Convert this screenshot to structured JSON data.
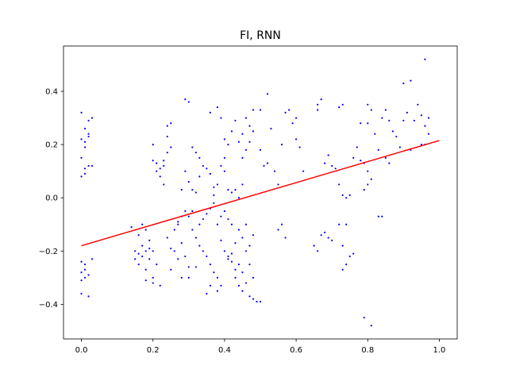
{
  "chart_data": {
    "type": "scatter",
    "title": "FI, RNN",
    "xlabel": "",
    "ylabel": "",
    "xlim": [
      -0.05,
      1.05
    ],
    "ylim": [
      -0.53,
      0.57
    ],
    "xticks": [
      0.0,
      0.2,
      0.4,
      0.6,
      0.8,
      1.0
    ],
    "xtick_labels": [
      "0.0",
      "0.2",
      "0.4",
      "0.6",
      "0.8",
      "1.0"
    ],
    "yticks": [
      -0.4,
      -0.2,
      0.0,
      0.2,
      0.4
    ],
    "ytick_labels": [
      "−0.4",
      "−0.2",
      "0.0",
      "0.2",
      "0.4"
    ],
    "grid": false,
    "legend": "none",
    "colors": {
      "points": "#0000ff",
      "fit_line": "#ff0000",
      "axes": "#000000"
    },
    "series": [
      {
        "kind": "scatter",
        "points": [
          [
            0.0,
            0.32
          ],
          [
            0.01,
            0.26
          ],
          [
            0.02,
            0.29
          ],
          [
            0.0,
            0.22
          ],
          [
            0.01,
            0.19
          ],
          [
            0.02,
            0.24
          ],
          [
            0.0,
            0.15
          ],
          [
            0.01,
            0.11
          ],
          [
            0.02,
            0.12
          ],
          [
            0.0,
            0.08
          ],
          [
            0.01,
            0.09
          ],
          [
            0.02,
            0.23
          ],
          [
            0.01,
            0.21
          ],
          [
            0.03,
            0.3
          ],
          [
            0.03,
            0.12
          ],
          [
            0.0,
            -0.24
          ],
          [
            0.01,
            -0.25
          ],
          [
            0.0,
            -0.28
          ],
          [
            0.01,
            -0.3
          ],
          [
            0.0,
            -0.31
          ],
          [
            0.02,
            -0.29
          ],
          [
            0.01,
            -0.27
          ],
          [
            0.0,
            -0.36
          ],
          [
            0.02,
            -0.37
          ],
          [
            0.03,
            -0.23
          ],
          [
            0.14,
            -0.11
          ],
          [
            0.15,
            -0.2
          ],
          [
            0.16,
            -0.25
          ],
          [
            0.16,
            -0.14
          ],
          [
            0.17,
            -0.18
          ],
          [
            0.17,
            -0.22
          ],
          [
            0.18,
            -0.27
          ],
          [
            0.18,
            -0.12
          ],
          [
            0.19,
            -0.16
          ],
          [
            0.19,
            -0.23
          ],
          [
            0.2,
            -0.3
          ],
          [
            0.2,
            -0.2
          ],
          [
            0.21,
            -0.25
          ],
          [
            0.17,
            -0.1
          ],
          [
            0.18,
            -0.2
          ],
          [
            0.19,
            -0.19
          ],
          [
            0.16,
            -0.21
          ],
          [
            0.15,
            -0.23
          ],
          [
            0.18,
            -0.31
          ],
          [
            0.2,
            -0.32
          ],
          [
            0.22,
            -0.33
          ],
          [
            0.2,
            0.14
          ],
          [
            0.21,
            0.13
          ],
          [
            0.22,
            0.11
          ],
          [
            0.23,
            0.14
          ],
          [
            0.2,
            0.2
          ],
          [
            0.21,
            0.1
          ],
          [
            0.22,
            0.08
          ],
          [
            0.23,
            0.05
          ],
          [
            0.24,
            0.27
          ],
          [
            0.25,
            0.28
          ],
          [
            0.24,
            0.23
          ],
          [
            0.25,
            0.19
          ],
          [
            0.24,
            0.17
          ],
          [
            0.23,
            0.12
          ],
          [
            0.24,
            -0.15
          ],
          [
            0.25,
            -0.19
          ],
          [
            0.26,
            -0.2
          ],
          [
            0.27,
            -0.23
          ],
          [
            0.28,
            -0.17
          ],
          [
            0.29,
            -0.22
          ],
          [
            0.3,
            -0.26
          ],
          [
            0.26,
            -0.12
          ],
          [
            0.27,
            -0.1
          ],
          [
            0.28,
            -0.07
          ],
          [
            0.29,
            -0.05
          ],
          [
            0.3,
            -0.07
          ],
          [
            0.25,
            -0.27
          ],
          [
            0.28,
            -0.3
          ],
          [
            0.3,
            -0.3
          ],
          [
            0.27,
            -0.09
          ],
          [
            0.28,
            0.03
          ],
          [
            0.29,
            0.1
          ],
          [
            0.3,
            0.06
          ],
          [
            0.31,
            0.03
          ],
          [
            0.32,
            0.02
          ],
          [
            0.33,
            0.08
          ],
          [
            0.34,
            0.12
          ],
          [
            0.29,
            0.37
          ],
          [
            0.3,
            0.36
          ],
          [
            0.31,
            0.19
          ],
          [
            0.32,
            0.17
          ],
          [
            0.33,
            0.15
          ],
          [
            0.35,
            0.11
          ],
          [
            0.36,
            0.09
          ],
          [
            0.37,
            0.04
          ],
          [
            0.31,
            -0.12
          ],
          [
            0.32,
            -0.15
          ],
          [
            0.33,
            -0.18
          ],
          [
            0.34,
            -0.2
          ],
          [
            0.35,
            -0.22
          ],
          [
            0.36,
            -0.25
          ],
          [
            0.37,
            -0.28
          ],
          [
            0.38,
            -0.3
          ],
          [
            0.39,
            -0.33
          ],
          [
            0.33,
            -0.1
          ],
          [
            0.34,
            -0.08
          ],
          [
            0.35,
            -0.06
          ],
          [
            0.36,
            -0.04
          ],
          [
            0.37,
            -0.02
          ],
          [
            0.31,
            -0.05
          ],
          [
            0.32,
            -0.26
          ],
          [
            0.35,
            -0.36
          ],
          [
            0.36,
            -0.33
          ],
          [
            0.38,
            -0.35
          ],
          [
            0.36,
            0.32
          ],
          [
            0.38,
            0.34
          ],
          [
            0.39,
            0.3
          ],
          [
            0.4,
            0.22
          ],
          [
            0.41,
            0.2
          ],
          [
            0.42,
            0.25
          ],
          [
            0.43,
            0.29
          ],
          [
            0.4,
            0.15
          ],
          [
            0.39,
            0.12
          ],
          [
            0.38,
            0.05
          ],
          [
            0.37,
            0.01
          ],
          [
            0.4,
            0.1
          ],
          [
            0.41,
            0.03
          ],
          [
            0.42,
            0.02
          ],
          [
            0.43,
            0.03
          ],
          [
            0.44,
            0.0
          ],
          [
            0.45,
            0.05
          ],
          [
            0.44,
            0.21
          ],
          [
            0.45,
            0.24
          ],
          [
            0.46,
            0.3
          ],
          [
            0.47,
            0.27
          ],
          [
            0.48,
            0.25
          ],
          [
            0.47,
            0.21
          ],
          [
            0.46,
            0.18
          ],
          [
            0.45,
            0.15
          ],
          [
            0.48,
            0.33
          ],
          [
            0.5,
            0.33
          ],
          [
            0.39,
            -0.16
          ],
          [
            0.4,
            -0.2
          ],
          [
            0.41,
            -0.23
          ],
          [
            0.42,
            -0.21
          ],
          [
            0.43,
            -0.17
          ],
          [
            0.44,
            -0.12
          ],
          [
            0.45,
            -0.15
          ],
          [
            0.46,
            -0.2
          ],
          [
            0.47,
            -0.25
          ],
          [
            0.48,
            -0.3
          ],
          [
            0.45,
            -0.28
          ],
          [
            0.44,
            -0.25
          ],
          [
            0.43,
            -0.27
          ],
          [
            0.42,
            -0.1
          ],
          [
            0.41,
            -0.08
          ],
          [
            0.4,
            -0.05
          ],
          [
            0.39,
            -0.07
          ],
          [
            0.38,
            -0.1
          ],
          [
            0.41,
            -0.22
          ],
          [
            0.42,
            -0.24
          ],
          [
            0.43,
            -0.3
          ],
          [
            0.44,
            -0.33
          ],
          [
            0.45,
            -0.35
          ],
          [
            0.46,
            -0.32
          ],
          [
            0.47,
            -0.37
          ],
          [
            0.48,
            -0.38
          ],
          [
            0.49,
            -0.39
          ],
          [
            0.5,
            -0.39
          ],
          [
            0.46,
            -0.1
          ],
          [
            0.47,
            -0.18
          ],
          [
            0.48,
            -0.14
          ],
          [
            0.5,
            0.18
          ],
          [
            0.51,
            0.12
          ],
          [
            0.52,
            0.39
          ],
          [
            0.53,
            0.26
          ],
          [
            0.54,
            0.1
          ],
          [
            0.55,
            0.05
          ],
          [
            0.56,
            0.2
          ],
          [
            0.57,
            0.32
          ],
          [
            0.58,
            0.33
          ],
          [
            0.59,
            0.28
          ],
          [
            0.6,
            0.3
          ],
          [
            0.55,
            -0.12
          ],
          [
            0.56,
            -0.1
          ],
          [
            0.57,
            -0.15
          ],
          [
            0.6,
            0.22
          ],
          [
            0.61,
            0.19
          ],
          [
            0.62,
            0.1
          ],
          [
            0.52,
            0.13
          ],
          [
            0.65,
            -0.18
          ],
          [
            0.66,
            -0.2
          ],
          [
            0.67,
            -0.14
          ],
          [
            0.68,
            -0.13
          ],
          [
            0.69,
            -0.15
          ],
          [
            0.7,
            -0.16
          ],
          [
            0.72,
            -0.1
          ],
          [
            0.73,
            -0.27
          ],
          [
            0.74,
            -0.25
          ],
          [
            0.75,
            -0.22
          ],
          [
            0.76,
            -0.21
          ],
          [
            0.73,
            -0.18
          ],
          [
            0.74,
            -0.1
          ],
          [
            0.66,
            0.35
          ],
          [
            0.67,
            0.37
          ],
          [
            0.66,
            0.33
          ],
          [
            0.68,
            0.13
          ],
          [
            0.69,
            0.16
          ],
          [
            0.7,
            0.12
          ],
          [
            0.71,
            0.11
          ],
          [
            0.72,
            0.05
          ],
          [
            0.73,
            0.01
          ],
          [
            0.74,
            0.0
          ],
          [
            0.75,
            0.01
          ],
          [
            0.76,
            0.15
          ],
          [
            0.77,
            0.19
          ],
          [
            0.78,
            0.28
          ],
          [
            0.72,
            0.34
          ],
          [
            0.73,
            0.35
          ],
          [
            0.78,
            0.14
          ],
          [
            0.79,
            0.13
          ],
          [
            0.8,
            0.1
          ],
          [
            0.81,
            0.07
          ],
          [
            0.8,
            0.05
          ],
          [
            0.79,
            0.03
          ],
          [
            0.8,
            0.35
          ],
          [
            0.81,
            0.33
          ],
          [
            0.8,
            0.28
          ],
          [
            0.82,
            0.24
          ],
          [
            0.83,
            0.18
          ],
          [
            0.84,
            0.3
          ],
          [
            0.85,
            0.33
          ],
          [
            0.86,
            0.29
          ],
          [
            0.87,
            0.25
          ],
          [
            0.88,
            0.23
          ],
          [
            0.89,
            0.19
          ],
          [
            0.9,
            0.29
          ],
          [
            0.91,
            0.32
          ],
          [
            0.9,
            0.43
          ],
          [
            0.92,
            0.44
          ],
          [
            0.93,
            0.29
          ],
          [
            0.94,
            0.35
          ],
          [
            0.95,
            0.31
          ],
          [
            0.96,
            0.52
          ],
          [
            0.97,
            0.3
          ],
          [
            0.96,
            0.27
          ],
          [
            0.97,
            0.24
          ],
          [
            0.96,
            0.2
          ],
          [
            0.95,
            0.2
          ],
          [
            0.92,
            0.18
          ],
          [
            0.85,
            0.15
          ],
          [
            0.86,
            0.13
          ],
          [
            0.83,
            -0.07
          ],
          [
            0.84,
            -0.07
          ],
          [
            0.79,
            -0.45
          ],
          [
            0.81,
            -0.48
          ]
        ]
      },
      {
        "kind": "line",
        "x": [
          0.0,
          1.0
        ],
        "y": [
          -0.18,
          0.215
        ]
      }
    ]
  }
}
